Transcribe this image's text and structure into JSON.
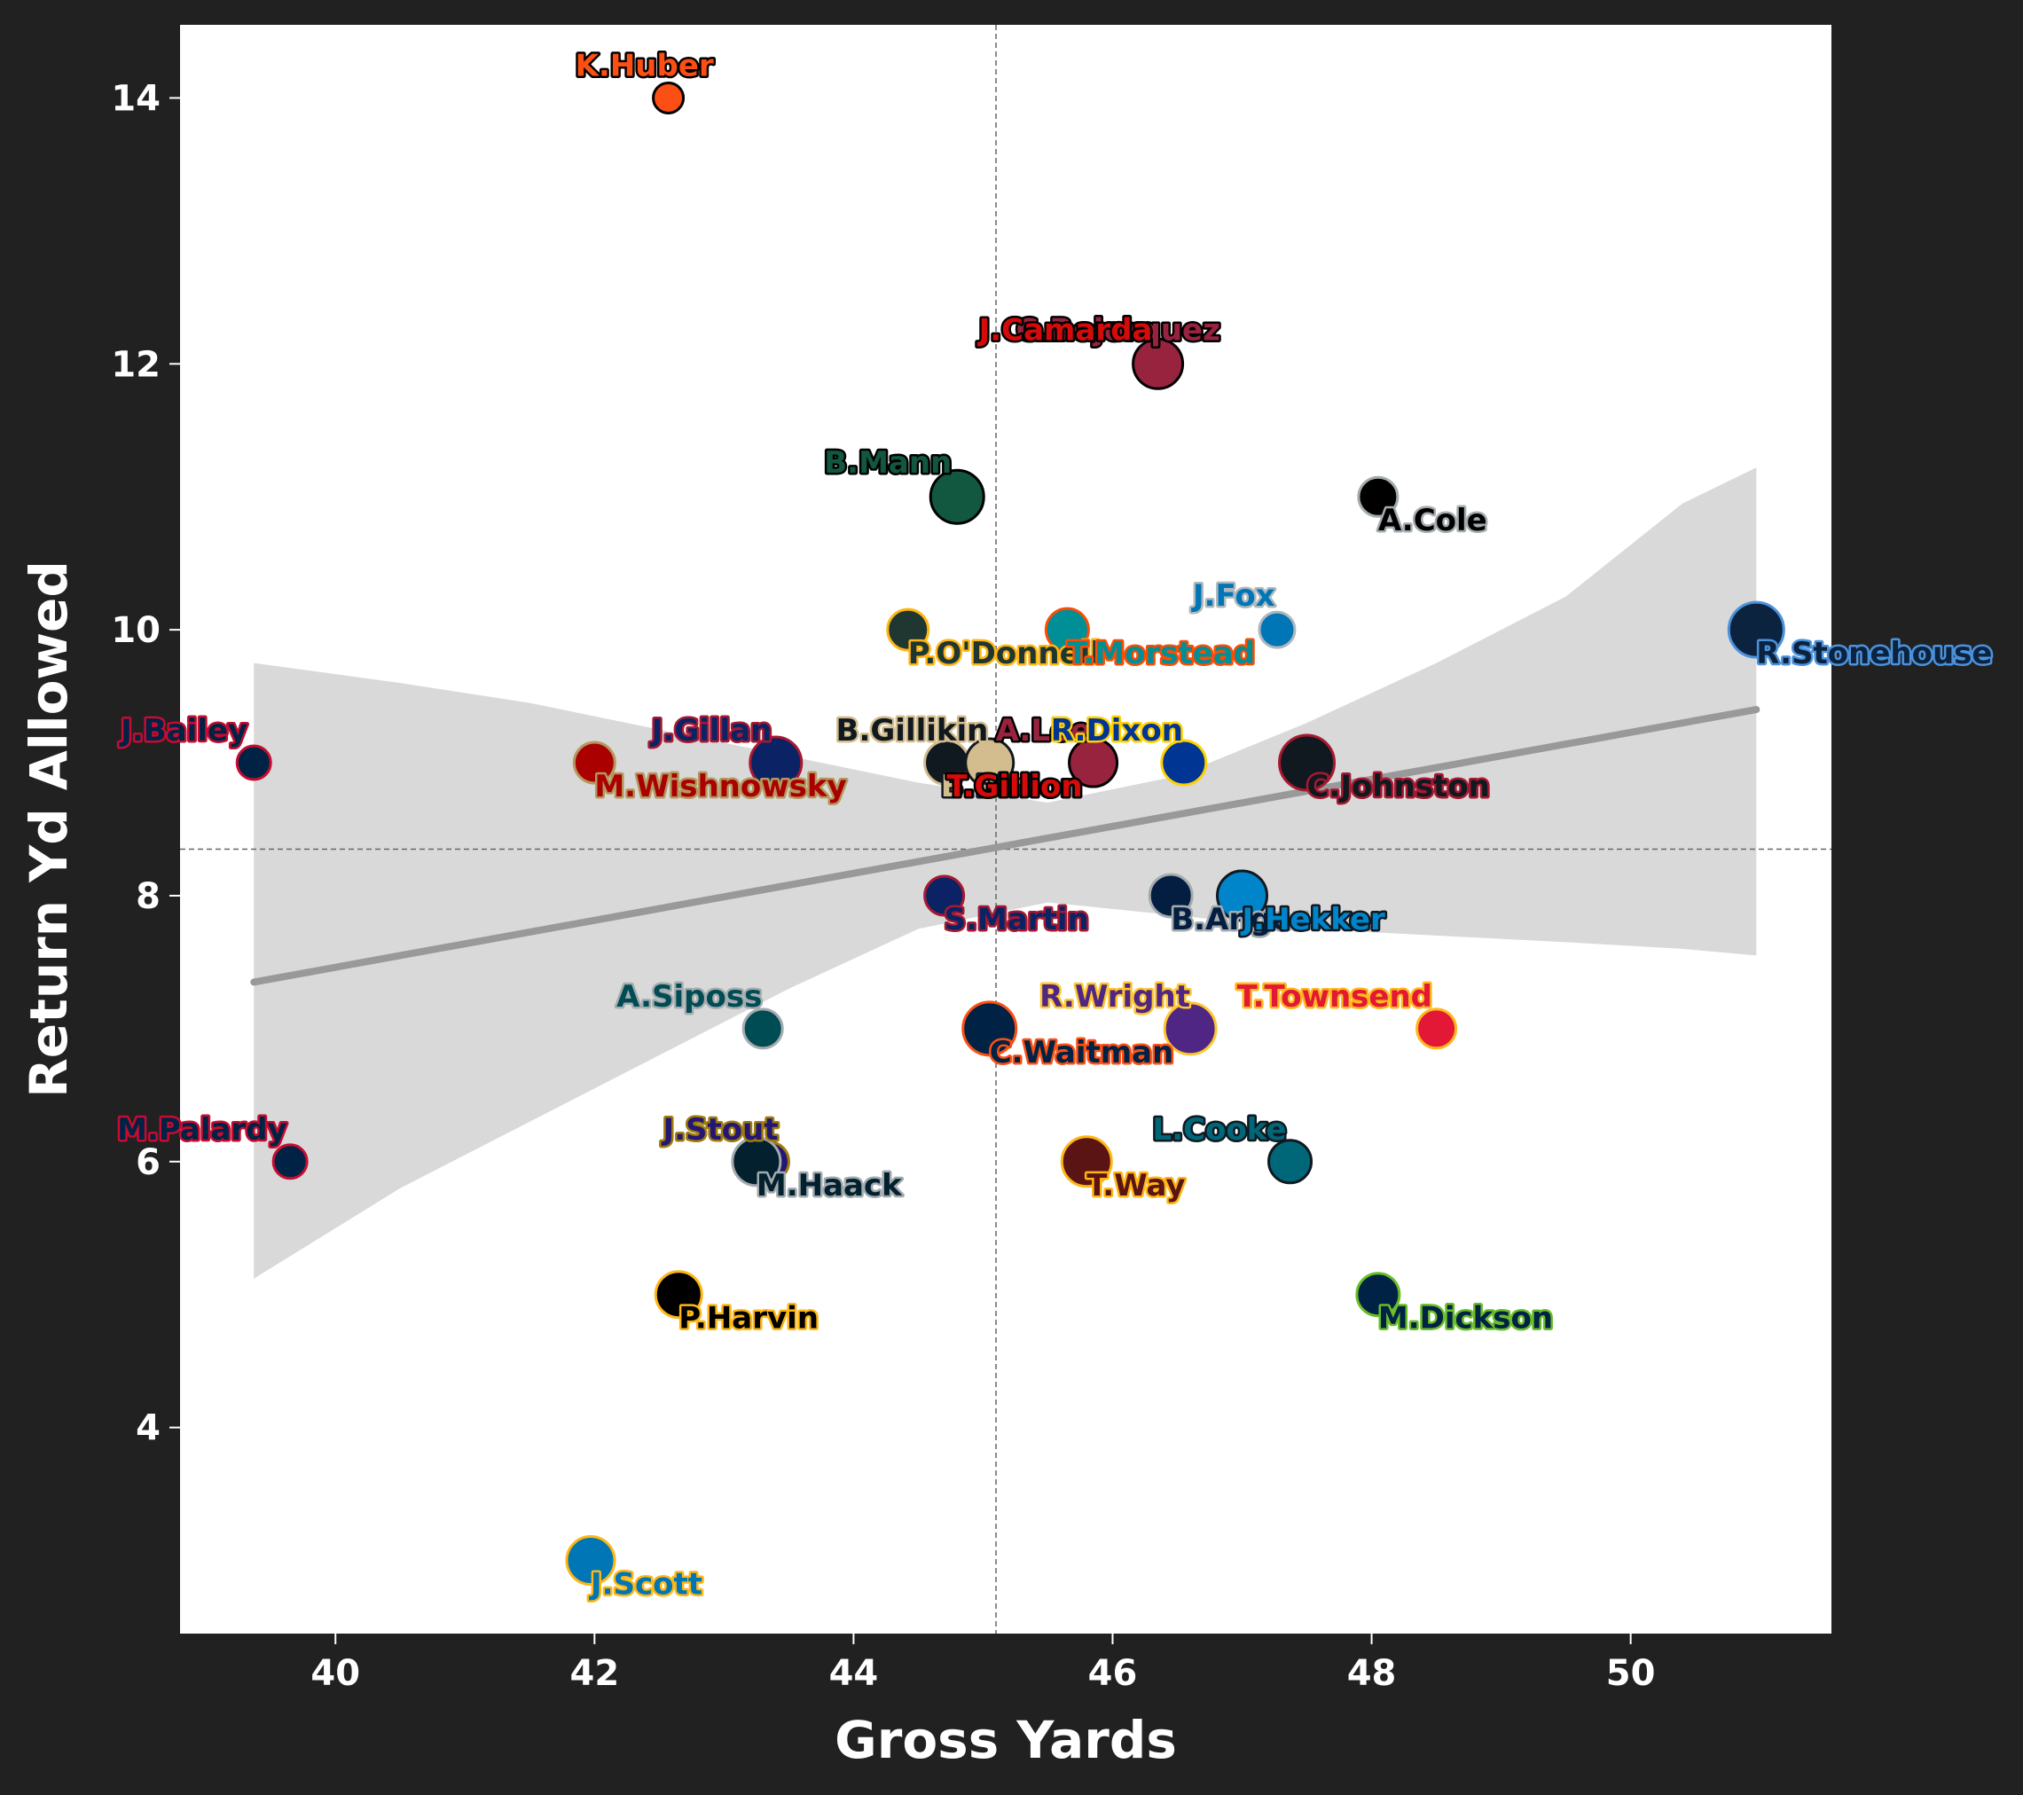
{
  "chart_data": {
    "type": "scatter",
    "xlabel": "Gross Yards",
    "ylabel": "Return Yd Allowed",
    "xlim": [
      38.8,
      51.55
    ],
    "ylim": [
      2.45,
      14.55
    ],
    "x_ticks": [
      "40",
      "42",
      "44",
      "46",
      "48",
      "50"
    ],
    "y_ticks": [
      "4",
      "6",
      "8",
      "10",
      "12",
      "14"
    ],
    "grid": false,
    "mean_lines": {
      "x": 45.1,
      "y": 8.35
    },
    "trend": {
      "x0": 39.37,
      "y0": 7.35,
      "x1": 50.97,
      "y1": 9.4
    },
    "confidence_band": {
      "x": [
        39.37,
        40.5,
        41.5,
        42.5,
        43.5,
        44.5,
        45.5,
        46.5,
        47.5,
        48.5,
        49.5,
        50.4,
        50.97
      ],
      "upper": [
        9.75,
        9.6,
        9.45,
        9.25,
        9.05,
        8.85,
        8.7,
        8.9,
        9.3,
        9.75,
        10.25,
        10.95,
        11.22
      ],
      "lower": [
        5.12,
        5.8,
        6.3,
        6.8,
        7.3,
        7.75,
        7.95,
        7.85,
        7.75,
        7.7,
        7.65,
        7.6,
        7.55
      ]
    },
    "colors": {
      "background": "#212121",
      "plot_bg": "#ffffff",
      "trend": "#999999",
      "band": "#d9d9d9"
    },
    "points": [
      {
        "name": "K.Huber",
        "x": 42.57,
        "y": 14.0,
        "r": 17,
        "fill": "#FB4F14",
        "edge": "#000000",
        "label_dx": -105,
        "label_dy": -25
      },
      {
        "name": "C.Bojorquez",
        "x": 46.35,
        "y": 12.0,
        "r": 28,
        "fill": "#97233F",
        "edge": "#000000",
        "label_dx": -160,
        "label_dy": -27
      },
      {
        "name": "J.Camarda",
        "x": 46.35,
        "y": 12.0,
        "r": 0,
        "fill": "#D50A0A",
        "edge": "#000000",
        "label_dx": -202,
        "label_dy": -27
      },
      {
        "name": "B.Mann",
        "x": 44.8,
        "y": 11.0,
        "r": 30,
        "fill": "#125740",
        "edge": "#000000",
        "label_dx": -150,
        "label_dy": -27
      },
      {
        "name": "A.Cole",
        "x": 48.05,
        "y": 11.0,
        "r": 22,
        "fill": "#000000",
        "edge": "#A5ACAF",
        "label_dx": 0,
        "label_dy": 38
      },
      {
        "name": "J.Fox",
        "x": 47.27,
        "y": 10.0,
        "r": 20,
        "fill": "#0076B6",
        "edge": "#B0B7BC",
        "label_dx": -95,
        "label_dy": -27
      },
      {
        "name": "P.O'Donnell",
        "x": 44.42,
        "y": 10.0,
        "r": 23,
        "fill": "#203731",
        "edge": "#FFB612",
        "label_dx": 0,
        "label_dy": 38
      },
      {
        "name": "T.Morstead",
        "x": 45.65,
        "y": 10.0,
        "r": 24,
        "fill": "#008E97",
        "edge": "#FC4C02",
        "label_dx": 0,
        "label_dy": 38
      },
      {
        "name": "R.Stonehouse",
        "x": 50.97,
        "y": 10.0,
        "r": 31,
        "fill": "#0C2340",
        "edge": "#4B92DB",
        "label_dx": 0,
        "label_dy": 38
      },
      {
        "name": "J.Bailey",
        "x": 39.37,
        "y": 9.0,
        "r": 19,
        "fill": "#002244",
        "edge": "#C60C30",
        "label_dx": -150,
        "label_dy": -25
      },
      {
        "name": "M.Wishnowsky",
        "x": 42.0,
        "y": 9.0,
        "r": 23,
        "fill": "#AA0000",
        "edge": "#B3995D",
        "label_dx": 0,
        "label_dy": 38
      },
      {
        "name": "J.Gillan",
        "x": 43.4,
        "y": 9.0,
        "r": 29,
        "fill": "#0B2265",
        "edge": "#A71930",
        "label_dx": -140,
        "label_dy": -25
      },
      {
        "name": "B.Gillikin",
        "x": 44.72,
        "y": 9.0,
        "r": 25,
        "fill": "#101820",
        "edge": "#D3BC8D",
        "label_dx": -125,
        "label_dy": -25
      },
      {
        "name": "T.Gill",
        "x": 44.72,
        "y": 9.0,
        "r": 0,
        "fill": "#0080C6",
        "edge": "#FFC20E",
        "label_dx": 0,
        "label_dy": 38
      },
      {
        "name": "B.Pinion",
        "x": 45.05,
        "y": 9.0,
        "r": 27,
        "fill": "#D3BC8D",
        "edge": "#101820",
        "label_dx": -55,
        "label_dy": 38
      },
      {
        "name": "T.Gillion",
        "x": 44.72,
        "y": 9.0,
        "r": 0,
        "fill": "#D50A0A",
        "edge": "#000000",
        "label_dx": 0,
        "label_dy": 38
      },
      {
        "name": "A.Lee",
        "x": 45.85,
        "y": 9.0,
        "r": 27,
        "fill": "#97233F",
        "edge": "#000000",
        "label_dx": -110,
        "label_dy": -25
      },
      {
        "name": "R.Dixon",
        "x": 46.55,
        "y": 9.0,
        "r": 25,
        "fill": "#003594",
        "edge": "#FFD100",
        "label_dx": -150,
        "label_dy": -25
      },
      {
        "name": "C.Johnston",
        "x": 47.5,
        "y": 9.0,
        "r": 31,
        "fill": "#101820",
        "edge": "#A71930",
        "label_dx": 0,
        "label_dy": 38
      },
      {
        "name": "S.Martin",
        "x": 44.7,
        "y": 8.0,
        "r": 22,
        "fill": "#0B2265",
        "edge": "#A71930",
        "label_dx": 0,
        "label_dy": 38
      },
      {
        "name": "B.Anger",
        "x": 46.45,
        "y": 8.0,
        "r": 24,
        "fill": "#041E42",
        "edge": "#A5ACAF",
        "label_dx": 0,
        "label_dy": 38
      },
      {
        "name": "J.Hekker",
        "x": 47.0,
        "y": 8.0,
        "r": 28,
        "fill": "#0085CA",
        "edge": "#101820",
        "label_dx": 0,
        "label_dy": 38
      },
      {
        "name": "A.Siposs",
        "x": 43.3,
        "y": 7.0,
        "r": 22,
        "fill": "#004C54",
        "edge": "#A5ACAF",
        "label_dx": -165,
        "label_dy": -25
      },
      {
        "name": "C.Waitman",
        "x": 45.05,
        "y": 7.0,
        "r": 30,
        "fill": "#002244",
        "edge": "#FB4F14",
        "label_dx": 0,
        "label_dy": 38
      },
      {
        "name": "R.Wright",
        "x": 46.6,
        "y": 7.0,
        "r": 29,
        "fill": "#4F2683",
        "edge": "#FFC62F",
        "label_dx": -170,
        "label_dy": -25
      },
      {
        "name": "T.Townsend",
        "x": 48.5,
        "y": 7.0,
        "r": 22,
        "fill": "#E31837",
        "edge": "#FFB81C",
        "label_dx": -225,
        "label_dy": -25
      },
      {
        "name": "M.Palardy",
        "x": 39.65,
        "y": 6.0,
        "r": 19,
        "fill": "#002244",
        "edge": "#C60C30",
        "label_dx": -195,
        "label_dy": -25
      },
      {
        "name": "J.Stout",
        "x": 43.35,
        "y": 6.0,
        "r": 22,
        "fill": "#241773",
        "edge": "#9E7C0C",
        "label_dx": -120,
        "label_dy": -25
      },
      {
        "name": "M.Haack",
        "x": 43.25,
        "y": 6.0,
        "r": 27,
        "fill": "#03202F",
        "edge": "#A2AAAD",
        "label_dx": 0,
        "label_dy": 38
      },
      {
        "name": "T.Way",
        "x": 45.8,
        "y": 6.0,
        "r": 28,
        "fill": "#5A1414",
        "edge": "#FFB612",
        "label_dx": 0,
        "label_dy": 38
      },
      {
        "name": "L.Cooke",
        "x": 47.37,
        "y": 6.0,
        "r": 24,
        "fill": "#006778",
        "edge": "#101820",
        "label_dx": -155,
        "label_dy": -25
      },
      {
        "name": "P.Harvin",
        "x": 42.65,
        "y": 5.0,
        "r": 26,
        "fill": "#000000",
        "edge": "#FFB612",
        "label_dx": 0,
        "label_dy": 38
      },
      {
        "name": "M.Dickson",
        "x": 48.05,
        "y": 5.0,
        "r": 24,
        "fill": "#002244",
        "edge": "#69BE28",
        "label_dx": 0,
        "label_dy": 38
      },
      {
        "name": "J.Scott",
        "x": 41.97,
        "y": 3.0,
        "r": 27,
        "fill": "#0076B6",
        "edge": "#FFB612",
        "label_dx": 0,
        "label_dy": 38
      }
    ]
  }
}
